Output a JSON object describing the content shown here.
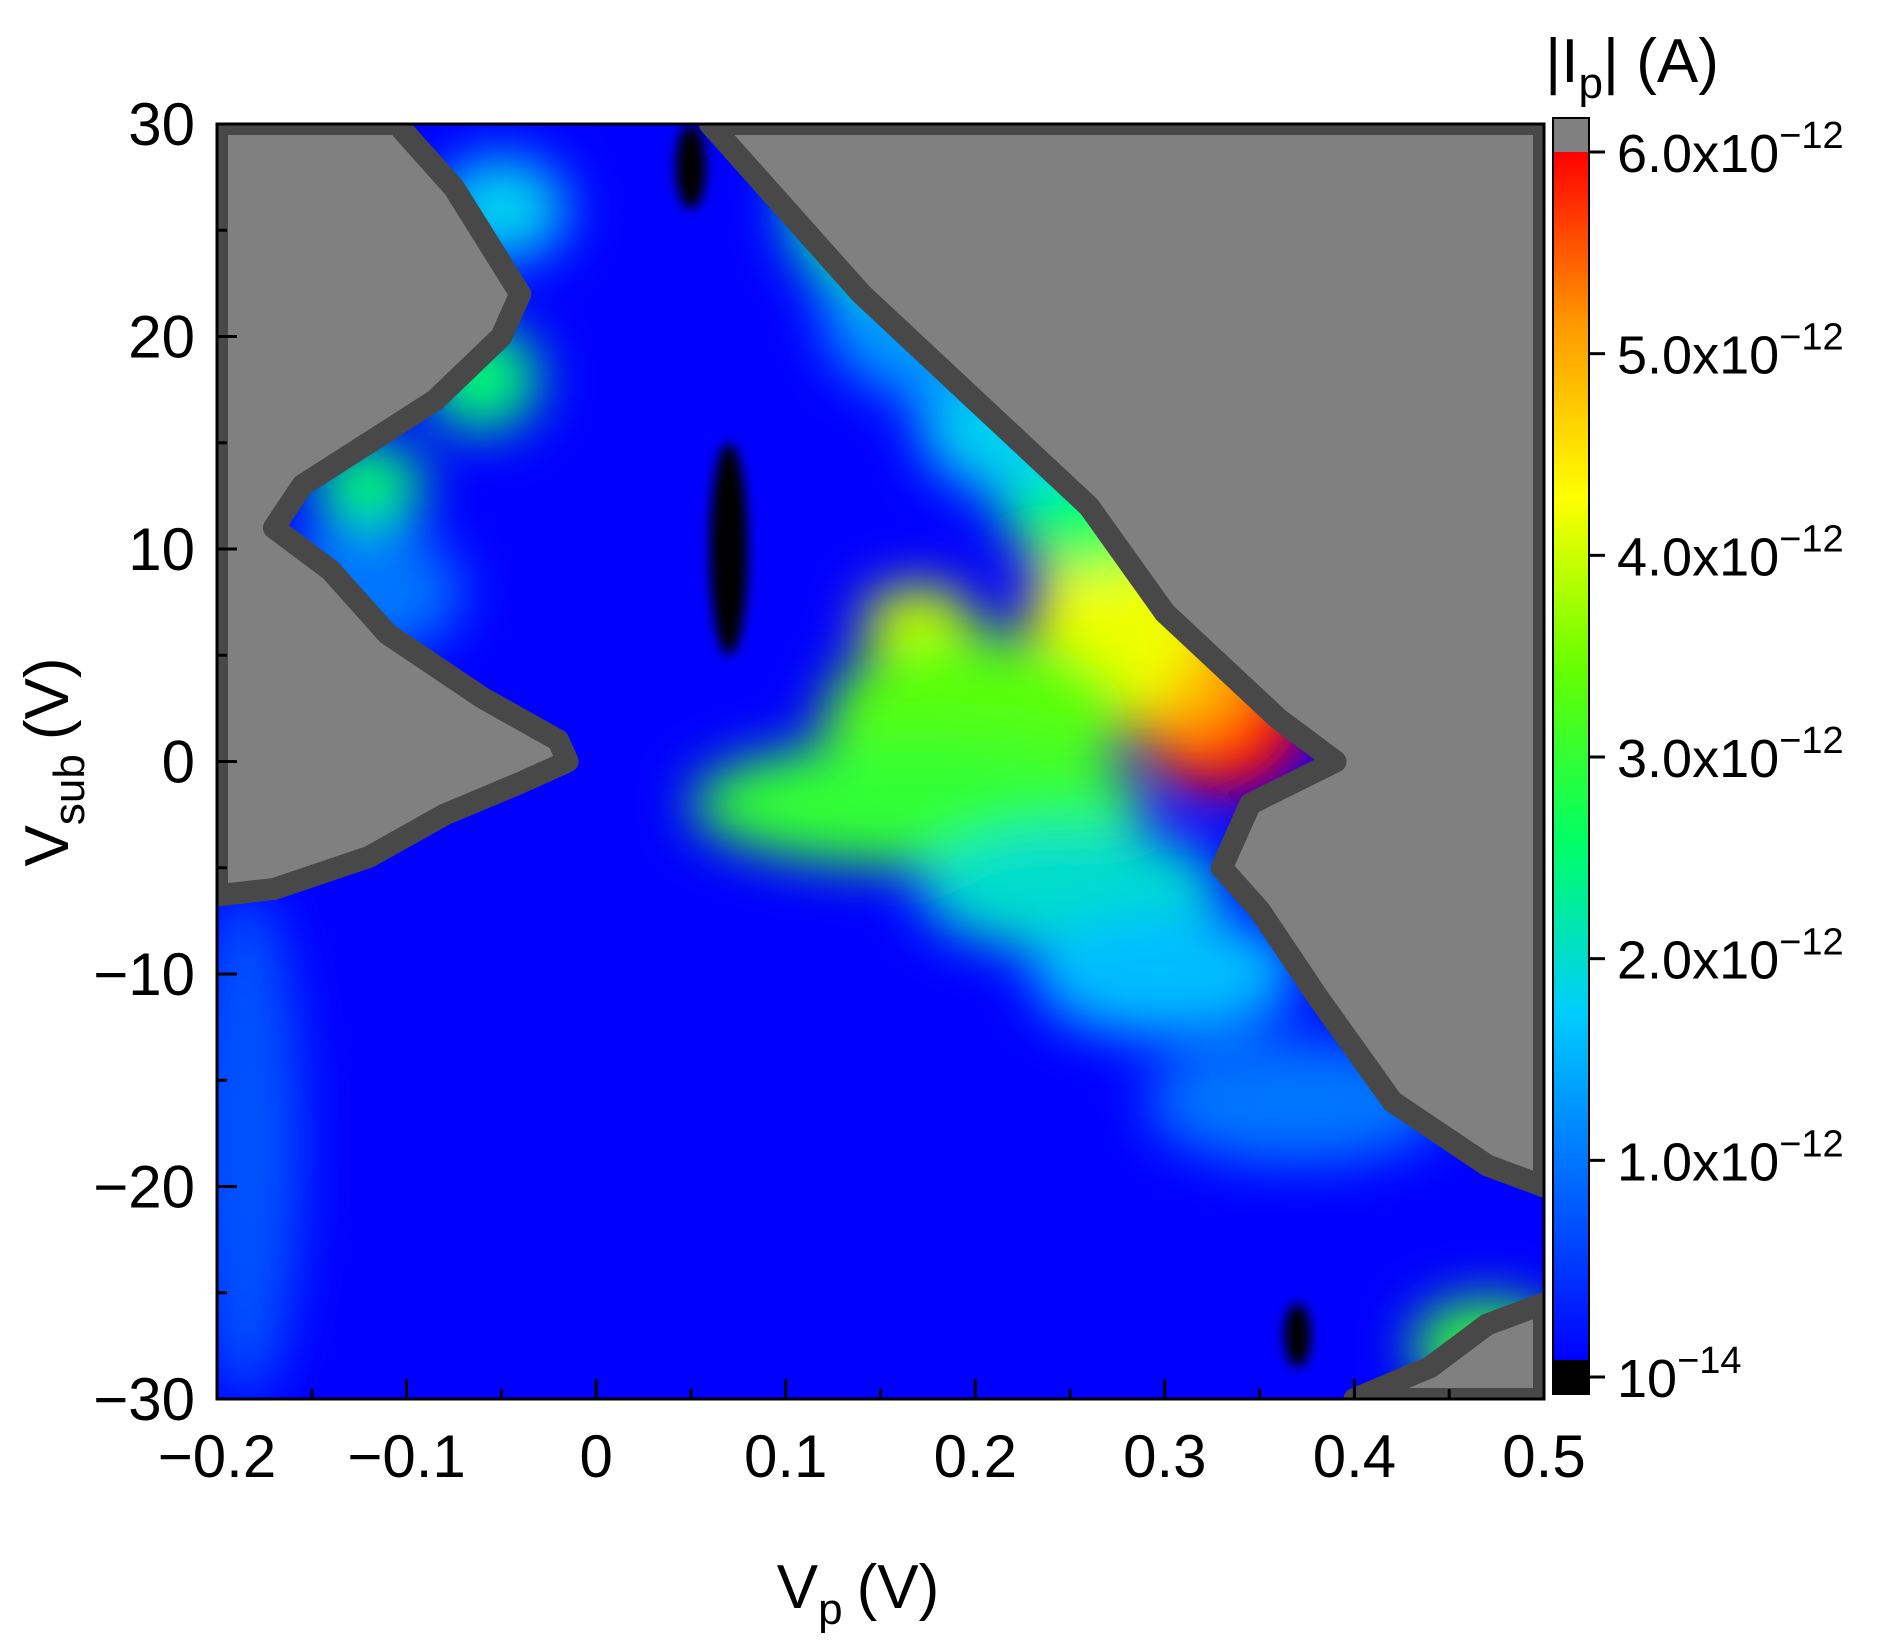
{
  "chart_data": {
    "type": "heatmap",
    "title": "",
    "xlabel": {
      "main": "V",
      "sub": "p",
      "unit": "(V)"
    },
    "ylabel": {
      "main": "V",
      "sub": "sub",
      "unit": "(V)"
    },
    "xlim": [
      -0.2,
      0.5
    ],
    "ylim": [
      -30,
      30
    ],
    "x_ticks": [
      -0.2,
      -0.1,
      0,
      0.1,
      0.2,
      0.3,
      0.4,
      0.5
    ],
    "x_tick_labels": [
      "−0.2",
      "−0.1",
      "0",
      "0.1",
      "0.2",
      "0.3",
      "0.4",
      "0.5"
    ],
    "y_ticks": [
      30,
      20,
      10,
      0,
      -10,
      -20,
      -30
    ],
    "y_tick_labels": [
      "30",
      "20",
      "10",
      "0",
      "−10",
      "−20",
      "−30"
    ],
    "colorbar": {
      "label": {
        "pre": "|I",
        "sub": "p",
        "post": "| (A)"
      },
      "ticks": [
        {
          "value": 6e-12,
          "mantissa": "6.0x10",
          "exp": "−12"
        },
        {
          "value": 5e-12,
          "mantissa": "5.0x10",
          "exp": "−12"
        },
        {
          "value": 4e-12,
          "mantissa": "4.0x10",
          "exp": "−12"
        },
        {
          "value": 3e-12,
          "mantissa": "3.0x10",
          "exp": "−12"
        },
        {
          "value": 2e-12,
          "mantissa": "2.0x10",
          "exp": "−12"
        },
        {
          "value": 1e-12,
          "mantissa": "1.0x10",
          "exp": "−12"
        },
        {
          "value": 1e-14,
          "mantissa": "10",
          "exp": "−14"
        }
      ],
      "range": [
        1e-14,
        6e-12
      ],
      "over_color": "#808080",
      "under_color": "#000000",
      "colormap": [
        "#0000ff",
        "#0066ff",
        "#00ccff",
        "#00ff66",
        "#66ff00",
        "#ffff00",
        "#ff9900",
        "#ff0000"
      ]
    },
    "over_range_color": "#808080",
    "edge_band_color": "#484848",
    "regions": [
      {
        "name": "upper-left saturated (gray)",
        "polygon": [
          [
            -0.2,
            30
          ],
          [
            -0.105,
            30
          ],
          [
            -0.075,
            27
          ],
          [
            -0.04,
            22
          ],
          [
            -0.05,
            20
          ],
          [
            -0.085,
            17
          ],
          [
            -0.12,
            15
          ],
          [
            -0.155,
            13
          ],
          [
            -0.17,
            11
          ],
          [
            -0.14,
            9
          ],
          [
            -0.11,
            6
          ],
          [
            -0.06,
            3
          ],
          [
            -0.02,
            1
          ],
          [
            -0.015,
            0
          ],
          [
            -0.04,
            -1
          ],
          [
            -0.08,
            -2.5
          ],
          [
            -0.12,
            -4.5
          ],
          [
            -0.17,
            -6
          ],
          [
            -0.2,
            -6.3
          ]
        ]
      },
      {
        "name": "upper-right saturated (gray)",
        "polygon": [
          [
            0.06,
            30
          ],
          [
            0.5,
            30
          ],
          [
            0.5,
            -20
          ],
          [
            0.47,
            -19
          ],
          [
            0.42,
            -16
          ],
          [
            0.38,
            -11
          ],
          [
            0.35,
            -7
          ],
          [
            0.33,
            -5
          ],
          [
            0.345,
            -2
          ],
          [
            0.39,
            0
          ],
          [
            0.36,
            2
          ],
          [
            0.3,
            7
          ],
          [
            0.26,
            12
          ],
          [
            0.2,
            17
          ],
          [
            0.14,
            22
          ],
          [
            0.1,
            26
          ]
        ]
      },
      {
        "name": "lower-right saturated corner (gray)",
        "polygon": [
          [
            0.5,
            -30
          ],
          [
            0.5,
            -25.5
          ],
          [
            0.47,
            -26.5
          ],
          [
            0.44,
            -28.5
          ],
          [
            0.4,
            -30
          ]
        ]
      }
    ],
    "blobs": [
      {
        "x": 0.33,
        "y": 2,
        "rx": 0.045,
        "ry": 3.5,
        "value": 6e-12
      },
      {
        "x": 0.31,
        "y": 5,
        "rx": 0.04,
        "ry": 4,
        "value": 5e-12
      },
      {
        "x": 0.275,
        "y": 7,
        "rx": 0.045,
        "ry": 5,
        "value": 4.2e-12
      },
      {
        "x": 0.17,
        "y": 6.5,
        "rx": 0.03,
        "ry": 1.8,
        "value": 4e-12
      },
      {
        "x": 0.2,
        "y": 2,
        "rx": 0.08,
        "ry": 4,
        "value": 3.3e-12
      },
      {
        "x": 0.17,
        "y": -2,
        "rx": 0.12,
        "ry": 3,
        "value": 3e-12
      },
      {
        "x": 0.26,
        "y": 13,
        "rx": 0.05,
        "ry": 4,
        "value": 2.6e-12
      },
      {
        "x": 0.25,
        "y": -6,
        "rx": 0.08,
        "ry": 3,
        "value": 2e-12
      },
      {
        "x": 0.22,
        "y": 16,
        "rx": 0.05,
        "ry": 3.5,
        "value": 1.8e-12
      },
      {
        "x": 0.3,
        "y": -10,
        "rx": 0.07,
        "ry": 3,
        "value": 1.6e-12
      },
      {
        "x": 0.18,
        "y": 21,
        "rx": 0.06,
        "ry": 4,
        "value": 1.3e-12
      },
      {
        "x": 0.14,
        "y": 26,
        "rx": 0.04,
        "ry": 4,
        "value": 2.2e-12
      },
      {
        "x": 0.37,
        "y": -16,
        "rx": 0.08,
        "ry": 3,
        "value": 1e-12
      },
      {
        "x": -0.12,
        "y": 8,
        "rx": 0.05,
        "ry": 3,
        "value": 1e-12
      },
      {
        "x": -0.12,
        "y": 13,
        "rx": 0.03,
        "ry": 2,
        "value": 2.5e-12
      },
      {
        "x": -0.06,
        "y": 18,
        "rx": 0.03,
        "ry": 2.5,
        "value": 2.5e-12
      },
      {
        "x": -0.05,
        "y": 26,
        "rx": 0.035,
        "ry": 2.5,
        "value": 1.8e-12
      },
      {
        "x": 0.47,
        "y": -27.5,
        "rx": 0.04,
        "ry": 2.2,
        "value": 3e-12
      },
      {
        "x": -0.185,
        "y": -18,
        "rx": 0.03,
        "ry": 12,
        "value": 7e-13
      }
    ],
    "under_range_spots": [
      {
        "x": 0.07,
        "y": 10,
        "rx": 0.01,
        "ry": 5
      },
      {
        "x": 0.05,
        "y": 28,
        "rx": 0.008,
        "ry": 2
      },
      {
        "x": 0.37,
        "y": -27,
        "rx": 0.007,
        "ry": 1.5
      }
    ]
  }
}
